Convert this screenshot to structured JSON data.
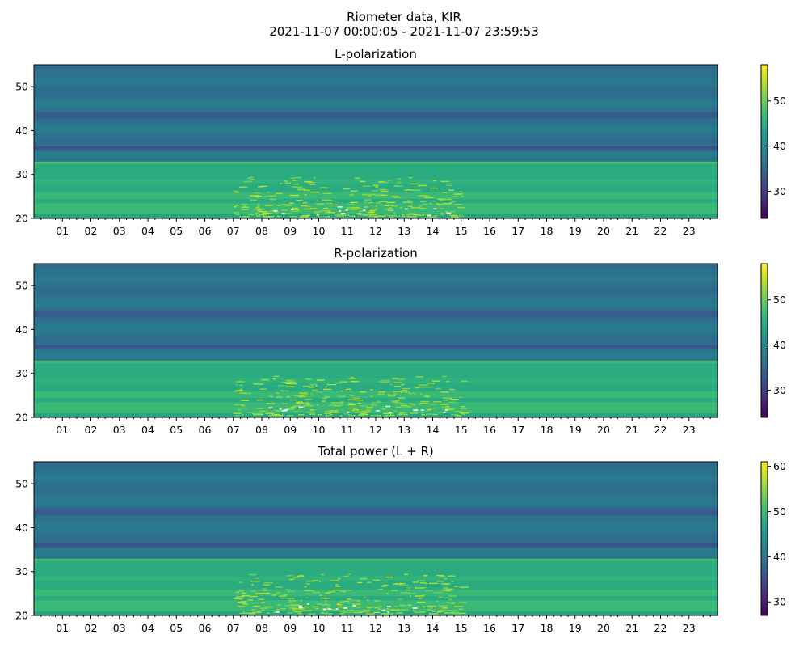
{
  "figure": {
    "title_line1": "Riometer data, KIR",
    "title_line2": "2021-11-07 00:00:05 - 2021-11-07 23:59:53"
  },
  "colors": {
    "viridis": [
      "#440154",
      "#482878",
      "#3e4989",
      "#31688e",
      "#26828e",
      "#1f9e89",
      "#35b779",
      "#6ece58",
      "#b5de2b",
      "#fde725"
    ]
  },
  "chart_data": [
    {
      "type": "heatmap",
      "title": "L-polarization",
      "x_tick_labels": [
        "01",
        "02",
        "03",
        "04",
        "05",
        "06",
        "07",
        "08",
        "09",
        "10",
        "11",
        "12",
        "13",
        "14",
        "15",
        "16",
        "17",
        "18",
        "19",
        "20",
        "21",
        "22",
        "23"
      ],
      "x_range_hours": [
        0,
        24
      ],
      "y_range": [
        20,
        55
      ],
      "y_ticks": [
        20,
        30,
        40,
        50
      ],
      "colorbar_range": [
        24,
        58
      ],
      "colorbar_ticks": [
        30,
        40,
        50
      ],
      "colormap": "viridis",
      "typical_values": {
        "y_20_26": 47,
        "y_26_32": 45,
        "y_32_55": 37
      },
      "enhancement_hours": [
        7,
        15
      ]
    },
    {
      "type": "heatmap",
      "title": "R-polarization",
      "x_tick_labels": [
        "01",
        "02",
        "03",
        "04",
        "05",
        "06",
        "07",
        "08",
        "09",
        "10",
        "11",
        "12",
        "13",
        "14",
        "15",
        "16",
        "17",
        "18",
        "19",
        "20",
        "21",
        "22",
        "23"
      ],
      "x_range_hours": [
        0,
        24
      ],
      "y_range": [
        20,
        55
      ],
      "y_ticks": [
        20,
        30,
        40,
        50
      ],
      "colorbar_range": [
        24,
        58
      ],
      "colorbar_ticks": [
        30,
        40,
        50
      ],
      "colormap": "viridis",
      "typical_values": {
        "y_20_26": 47,
        "y_26_32": 45,
        "y_32_55": 37
      },
      "enhancement_hours": [
        7,
        15
      ]
    },
    {
      "type": "heatmap",
      "title": "Total power (L + R)",
      "x_tick_labels": [
        "01",
        "02",
        "03",
        "04",
        "05",
        "06",
        "07",
        "08",
        "09",
        "10",
        "11",
        "12",
        "13",
        "14",
        "15",
        "16",
        "17",
        "18",
        "19",
        "20",
        "21",
        "22",
        "23"
      ],
      "x_range_hours": [
        0,
        24
      ],
      "y_range": [
        20,
        55
      ],
      "y_ticks": [
        20,
        30,
        40,
        50
      ],
      "colorbar_range": [
        27,
        61
      ],
      "colorbar_ticks": [
        30,
        40,
        50,
        60
      ],
      "colormap": "viridis",
      "typical_values": {
        "y_20_26": 50,
        "y_26_32": 48,
        "y_32_55": 40
      },
      "enhancement_hours": [
        7,
        15
      ]
    }
  ]
}
